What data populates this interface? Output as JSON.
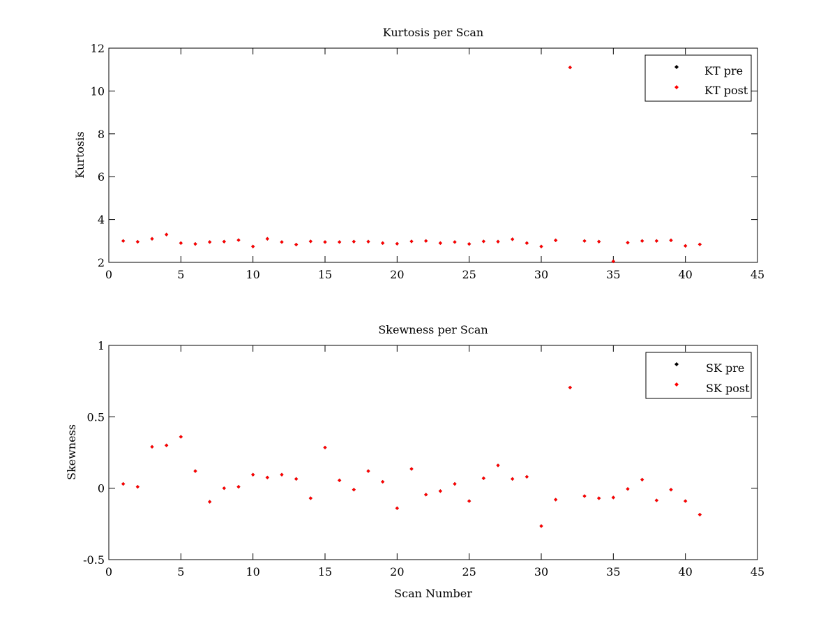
{
  "chart_data": [
    {
      "type": "scatter",
      "title": "Kurtosis per Scan",
      "xlabel": "",
      "ylabel": "Kurtosis",
      "xlim": [
        0,
        45
      ],
      "ylim": [
        2,
        12
      ],
      "xticks": [
        "0",
        "5",
        "10",
        "15",
        "20",
        "25",
        "30",
        "35",
        "40",
        "45"
      ],
      "yticks": [
        "2",
        "4",
        "6",
        "8",
        "10",
        "12"
      ],
      "grid": false,
      "legend_position": "top-right",
      "x": [
        1,
        2,
        3,
        4,
        5,
        6,
        7,
        8,
        9,
        10,
        11,
        12,
        13,
        14,
        15,
        16,
        17,
        18,
        19,
        20,
        21,
        22,
        23,
        24,
        25,
        26,
        27,
        28,
        29,
        30,
        31,
        32,
        33,
        34,
        35,
        36,
        37,
        38,
        39,
        40,
        41
      ],
      "series": [
        {
          "name": "KT pre",
          "color": "#000000",
          "marker": "diamond",
          "values": [
            3.0,
            2.96,
            3.1,
            3.3,
            2.9,
            2.86,
            2.95,
            2.97,
            3.04,
            2.74,
            3.1,
            2.95,
            2.83,
            2.98,
            2.95,
            2.95,
            2.97,
            2.97,
            2.9,
            2.87,
            2.98,
            3.0,
            2.9,
            2.95,
            2.86,
            2.98,
            2.97,
            3.08,
            2.9,
            2.74,
            3.03,
            11.1,
            3.0,
            2.97,
            2.05,
            2.92,
            3.0,
            3.0,
            3.03,
            2.77,
            2.84
          ]
        },
        {
          "name": "KT post",
          "color": "#ff0000",
          "marker": "diamond",
          "values": [
            3.0,
            2.96,
            3.1,
            3.3,
            2.9,
            2.86,
            2.95,
            2.97,
            3.04,
            2.74,
            3.1,
            2.95,
            2.83,
            2.98,
            2.95,
            2.95,
            2.97,
            2.97,
            2.9,
            2.87,
            2.98,
            3.0,
            2.9,
            2.95,
            2.86,
            2.98,
            2.97,
            3.08,
            2.9,
            2.74,
            3.03,
            11.1,
            3.0,
            2.97,
            2.05,
            2.92,
            3.0,
            3.0,
            3.03,
            2.77,
            2.84
          ]
        }
      ]
    },
    {
      "type": "scatter",
      "title": "Skewness per Scan",
      "xlabel": "Scan Number",
      "ylabel": "Skewness",
      "xlim": [
        0,
        45
      ],
      "ylim": [
        -0.5,
        1
      ],
      "xticks": [
        "0",
        "5",
        "10",
        "15",
        "20",
        "25",
        "30",
        "35",
        "40",
        "45"
      ],
      "yticks": [
        "-0.5",
        "0",
        "0.5",
        "1"
      ],
      "grid": false,
      "legend_position": "top-right",
      "x": [
        1,
        2,
        3,
        4,
        5,
        6,
        7,
        8,
        9,
        10,
        11,
        12,
        13,
        14,
        15,
        16,
        17,
        18,
        19,
        20,
        21,
        22,
        23,
        24,
        25,
        26,
        27,
        28,
        29,
        30,
        31,
        32,
        33,
        34,
        35,
        36,
        37,
        38,
        39,
        40,
        41
      ],
      "series": [
        {
          "name": "SK pre",
          "color": "#000000",
          "marker": "diamond",
          "values": [
            0.03,
            0.01,
            0.29,
            0.3,
            0.36,
            0.12,
            -0.095,
            0.0,
            0.01,
            0.095,
            0.075,
            0.095,
            0.065,
            -0.07,
            0.285,
            0.055,
            -0.01,
            0.12,
            0.045,
            -0.14,
            0.135,
            -0.045,
            -0.02,
            0.03,
            -0.09,
            0.07,
            0.16,
            0.065,
            0.08,
            -0.265,
            -0.08,
            0.705,
            -0.055,
            -0.07,
            -0.065,
            -0.005,
            0.06,
            -0.085,
            -0.01,
            -0.09,
            -0.185
          ]
        },
        {
          "name": "SK post",
          "color": "#ff0000",
          "marker": "diamond",
          "values": [
            0.03,
            0.01,
            0.29,
            0.3,
            0.36,
            0.12,
            -0.095,
            0.0,
            0.01,
            0.095,
            0.075,
            0.095,
            0.065,
            -0.07,
            0.285,
            0.055,
            -0.01,
            0.12,
            0.045,
            -0.14,
            0.135,
            -0.045,
            -0.02,
            0.03,
            -0.09,
            0.07,
            0.16,
            0.065,
            0.08,
            -0.265,
            -0.08,
            0.705,
            -0.055,
            -0.07,
            -0.065,
            -0.005,
            0.06,
            -0.085,
            -0.01,
            -0.09,
            -0.185
          ]
        }
      ]
    }
  ]
}
